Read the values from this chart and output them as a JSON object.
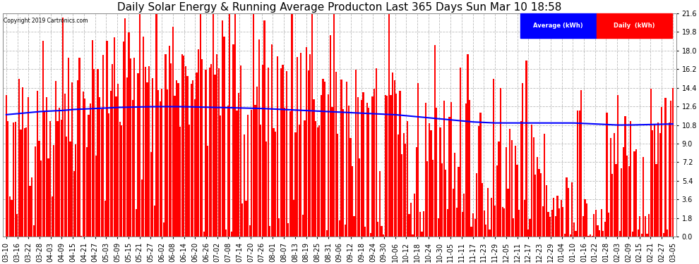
{
  "title": "Daily Solar Energy & Running Average Producton Last 365 Days Sun Mar 10 18:58",
  "copyright": "Copyright 2019 Cartronics.com",
  "legend_avg": "Average (kWh)",
  "legend_daily": "Daily  (kWh)",
  "bar_color": "#FF0000",
  "avg_line_color": "#0000FF",
  "background_color": "#FFFFFF",
  "grid_color": "#BBBBBB",
  "ylim": [
    0,
    21.6
  ],
  "yticks": [
    0.0,
    1.8,
    3.6,
    5.4,
    7.2,
    9.0,
    10.8,
    12.6,
    14.4,
    16.2,
    18.0,
    19.8,
    21.6
  ],
  "title_fontsize": 11,
  "tick_fontsize": 7,
  "x_labels": [
    "03-10",
    "03-16",
    "03-22",
    "03-28",
    "04-03",
    "04-09",
    "04-15",
    "04-21",
    "04-27",
    "05-03",
    "05-09",
    "05-15",
    "05-21",
    "05-27",
    "06-02",
    "06-08",
    "06-14",
    "06-20",
    "06-26",
    "07-02",
    "07-08",
    "07-14",
    "07-20",
    "07-26",
    "08-01",
    "08-07",
    "08-13",
    "08-19",
    "08-25",
    "08-31",
    "09-06",
    "09-12",
    "09-18",
    "09-24",
    "09-30",
    "10-06",
    "10-12",
    "10-18",
    "10-24",
    "10-30",
    "11-05",
    "11-11",
    "11-17",
    "11-23",
    "11-29",
    "12-05",
    "12-11",
    "12-17",
    "12-23",
    "12-29",
    "01-04",
    "01-10",
    "01-16",
    "01-22",
    "01-28",
    "02-03",
    "02-09",
    "02-15",
    "02-21",
    "02-27",
    "03-05"
  ],
  "num_bars": 365,
  "seed": 42,
  "avg_values": [
    11.8,
    11.9,
    12.0,
    12.1,
    12.15,
    12.2,
    12.3,
    12.35,
    12.4,
    12.45,
    12.5,
    12.52,
    12.55,
    12.57,
    12.58,
    12.58,
    12.57,
    12.55,
    12.52,
    12.5,
    12.48,
    12.45,
    12.42,
    12.4,
    12.35,
    12.3,
    12.25,
    12.2,
    12.15,
    12.1,
    12.05,
    12.0,
    11.95,
    11.9,
    11.85,
    11.8,
    11.7,
    11.6,
    11.5,
    11.4,
    11.3,
    11.2,
    11.1,
    11.05,
    11.0,
    11.0,
    11.0,
    11.0,
    11.0,
    11.0,
    11.0,
    11.0,
    10.95,
    10.9,
    10.85,
    10.8,
    10.8,
    10.82,
    10.85,
    10.88,
    10.9
  ]
}
